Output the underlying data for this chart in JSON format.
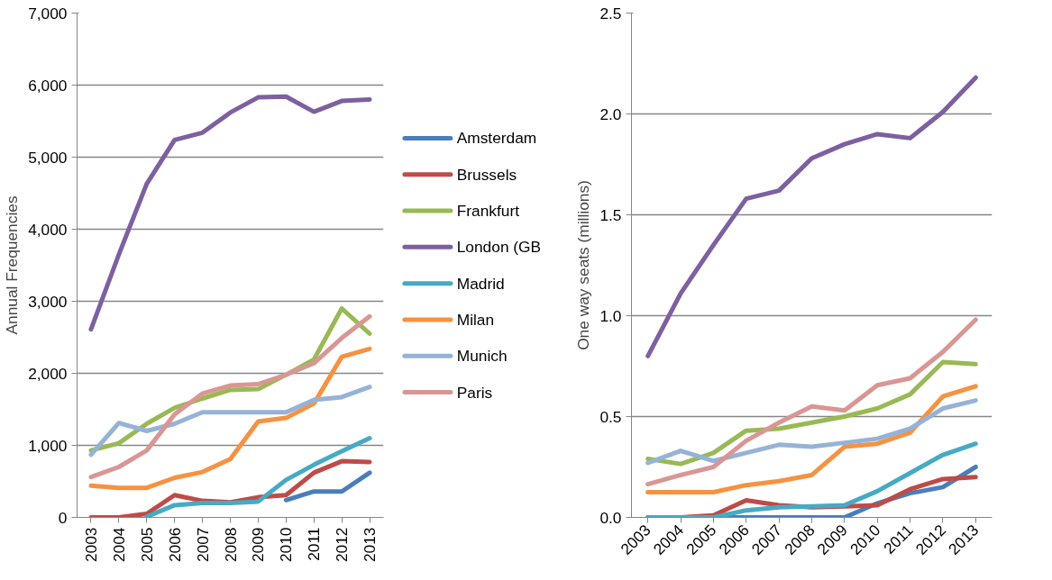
{
  "chart_data": [
    {
      "type": "line",
      "ylabel": "Annual Frequencies",
      "categories": [
        "2003",
        "2004",
        "2005",
        "2006",
        "2007",
        "2008",
        "2009",
        "2010",
        "2011",
        "2012",
        "2013"
      ],
      "ylim": [
        0,
        7000
      ],
      "yticks": [
        {
          "value": 0,
          "label": "0"
        },
        {
          "value": 1000,
          "label": "1,000"
        },
        {
          "value": 2000,
          "label": "2,000"
        },
        {
          "value": 3000,
          "label": "3,000"
        },
        {
          "value": 4000,
          "label": "4,000"
        },
        {
          "value": 5000,
          "label": "5,000"
        },
        {
          "value": 6000,
          "label": "6,000"
        },
        {
          "value": 7000,
          "label": "7,000"
        }
      ],
      "grid": "y",
      "legend": "right",
      "series": [
        {
          "name": "Amsterdam",
          "color": "#4a7ebb",
          "values": [
            null,
            null,
            null,
            null,
            null,
            null,
            null,
            240,
            360,
            360,
            620
          ]
        },
        {
          "name": "Brussels",
          "color": "#be4b48",
          "values": [
            0,
            0,
            50,
            310,
            230,
            210,
            280,
            310,
            620,
            780,
            770
          ]
        },
        {
          "name": "Frankfurt",
          "color": "#98b954",
          "values": [
            930,
            1030,
            1300,
            1520,
            1650,
            1770,
            1780,
            1980,
            2190,
            2900,
            2550
          ]
        },
        {
          "name": "London (GB",
          "color": "#7d60a0",
          "values": [
            2610,
            3650,
            4630,
            5240,
            5340,
            5620,
            5830,
            5840,
            5630,
            5780,
            5800
          ]
        },
        {
          "name": "Madrid",
          "color": "#46aac5",
          "values": [
            null,
            null,
            10,
            170,
            200,
            200,
            220,
            520,
            730,
            920,
            1100
          ]
        },
        {
          "name": "Milan",
          "color": "#f69240",
          "values": [
            440,
            410,
            410,
            550,
            630,
            810,
            1330,
            1380,
            1580,
            2230,
            2340
          ]
        },
        {
          "name": "Munich",
          "color": "#95b3d7",
          "values": [
            870,
            1310,
            1200,
            1300,
            1460,
            1460,
            1460,
            1460,
            1630,
            1670,
            1810
          ]
        },
        {
          "name": "Paris",
          "color": "#d99694",
          "values": [
            560,
            700,
            930,
            1430,
            1720,
            1830,
            1850,
            1980,
            2140,
            2490,
            2790
          ]
        }
      ]
    },
    {
      "type": "line",
      "ylabel": "One way seats (millions)",
      "categories": [
        "2003",
        "2004",
        "2005",
        "2006",
        "2007",
        "2008",
        "2009",
        "2010",
        "2011",
        "2012",
        "2013"
      ],
      "ylim": [
        0,
        2.5
      ],
      "yticks": [
        {
          "value": 0,
          "label": "0.0"
        },
        {
          "value": 0.5,
          "label": "0.5"
        },
        {
          "value": 1,
          "label": "1.0"
        },
        {
          "value": 1.5,
          "label": "1.5"
        },
        {
          "value": 2,
          "label": "2.0"
        },
        {
          "value": 2.5,
          "label": "2.5"
        }
      ],
      "grid": "y",
      "series": [
        {
          "color": "#4a7ebb",
          "values": [
            0,
            0,
            0,
            0,
            0,
            0,
            0,
            0.07,
            0.12,
            0.15,
            0.25
          ]
        },
        {
          "color": "#be4b48",
          "values": [
            0,
            0,
            0.01,
            0.085,
            0.06,
            0.05,
            0.055,
            0.06,
            0.14,
            0.19,
            0.2
          ]
        },
        {
          "color": "#98b954",
          "values": [
            0.29,
            0.265,
            0.32,
            0.43,
            0.44,
            0.47,
            0.5,
            0.54,
            0.61,
            0.77,
            0.76
          ]
        },
        {
          "color": "#7d60a0",
          "values": [
            0.8,
            1.11,
            1.35,
            1.58,
            1.62,
            1.78,
            1.85,
            1.9,
            1.88,
            2.01,
            2.18
          ]
        },
        {
          "color": "#46aac5",
          "values": [
            0,
            0,
            0,
            0.035,
            0.05,
            0.055,
            0.06,
            0.13,
            0.22,
            0.31,
            0.365
          ]
        },
        {
          "color": "#f69240",
          "values": [
            0.125,
            0.125,
            0.125,
            0.16,
            0.18,
            0.21,
            0.35,
            0.365,
            0.42,
            0.6,
            0.65
          ]
        },
        {
          "color": "#95b3d7",
          "values": [
            0.27,
            0.33,
            0.28,
            0.32,
            0.36,
            0.35,
            0.37,
            0.39,
            0.44,
            0.54,
            0.58
          ]
        },
        {
          "color": "#d99694",
          "values": [
            0.165,
            0.21,
            0.25,
            0.38,
            0.47,
            0.55,
            0.53,
            0.655,
            0.69,
            0.82,
            0.98
          ]
        }
      ]
    }
  ]
}
